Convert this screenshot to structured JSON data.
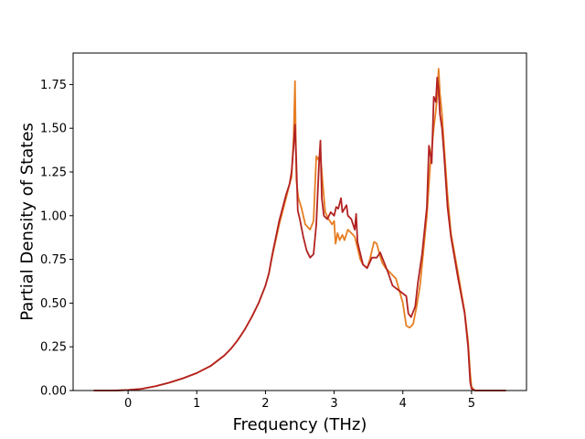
{
  "chart_data": {
    "type": "line",
    "title": "",
    "xlabel": "Frequency (THz)",
    "ylabel": "Partial Density of States",
    "xlim": [
      -0.8,
      5.8
    ],
    "ylim": [
      0,
      1.93
    ],
    "xticks": [
      0,
      1,
      2,
      3,
      4,
      5
    ],
    "yticks": [
      0.0,
      0.25,
      0.5,
      0.75,
      1.0,
      1.25,
      1.5,
      1.75
    ],
    "xtick_labels": [
      "0",
      "1",
      "2",
      "3",
      "4",
      "5"
    ],
    "ytick_labels": [
      "0.00",
      "0.25",
      "0.50",
      "0.75",
      "1.00",
      "1.25",
      "1.50",
      "1.75"
    ],
    "grid": false,
    "legend": false,
    "series": [
      {
        "color": "#e67e22",
        "x": [
          -0.5,
          -0.2,
          0.0,
          0.2,
          0.4,
          0.6,
          0.8,
          1.0,
          1.2,
          1.4,
          1.5,
          1.6,
          1.7,
          1.8,
          1.9,
          2.0,
          2.05,
          2.1,
          2.2,
          2.3,
          2.35,
          2.38,
          2.41,
          2.43,
          2.45,
          2.48,
          2.52,
          2.58,
          2.65,
          2.7,
          2.74,
          2.77,
          2.8,
          2.83,
          2.87,
          2.92,
          2.97,
          3.0,
          3.02,
          3.05,
          3.08,
          3.12,
          3.15,
          3.2,
          3.25,
          3.3,
          3.35,
          3.38,
          3.42,
          3.48,
          3.52,
          3.58,
          3.62,
          3.66,
          3.7,
          3.75,
          3.8,
          3.9,
          4.0,
          4.05,
          4.1,
          4.15,
          4.2,
          4.25,
          4.3,
          4.35,
          4.4,
          4.45,
          4.48,
          4.5,
          4.52,
          4.54,
          4.57,
          4.6,
          4.65,
          4.7,
          4.8,
          4.9,
          4.95,
          4.98,
          5.0,
          5.05,
          5.2,
          5.5
        ],
        "y": [
          0,
          0,
          0.003,
          0.01,
          0.025,
          0.045,
          0.07,
          0.1,
          0.14,
          0.2,
          0.24,
          0.29,
          0.35,
          0.42,
          0.5,
          0.6,
          0.67,
          0.77,
          0.95,
          1.1,
          1.18,
          1.22,
          1.45,
          1.77,
          1.2,
          1.1,
          1.05,
          0.95,
          0.92,
          0.97,
          1.34,
          1.32,
          1.36,
          1.2,
          1.02,
          0.98,
          0.95,
          0.97,
          0.84,
          0.9,
          0.86,
          0.89,
          0.86,
          0.92,
          0.9,
          0.88,
          0.8,
          0.75,
          0.72,
          0.7,
          0.75,
          0.85,
          0.84,
          0.78,
          0.73,
          0.7,
          0.68,
          0.64,
          0.5,
          0.37,
          0.36,
          0.38,
          0.48,
          0.6,
          0.8,
          1.0,
          1.3,
          1.5,
          1.6,
          1.68,
          1.84,
          1.7,
          1.58,
          1.4,
          1.12,
          0.9,
          0.68,
          0.45,
          0.28,
          0.1,
          0.02,
          0,
          0,
          0
        ]
      },
      {
        "color": "#b22222",
        "x": [
          -0.5,
          -0.2,
          0.0,
          0.2,
          0.4,
          0.6,
          0.8,
          1.0,
          1.2,
          1.4,
          1.5,
          1.6,
          1.7,
          1.8,
          1.9,
          2.0,
          2.05,
          2.1,
          2.2,
          2.3,
          2.35,
          2.38,
          2.41,
          2.43,
          2.45,
          2.47,
          2.5,
          2.55,
          2.6,
          2.65,
          2.7,
          2.74,
          2.78,
          2.8,
          2.82,
          2.85,
          2.9,
          2.95,
          3.0,
          3.03,
          3.06,
          3.1,
          3.12,
          3.15,
          3.18,
          3.2,
          3.25,
          3.3,
          3.32,
          3.34,
          3.37,
          3.42,
          3.48,
          3.55,
          3.62,
          3.67,
          3.72,
          3.78,
          3.85,
          3.95,
          4.05,
          4.08,
          4.12,
          4.18,
          4.22,
          4.28,
          4.35,
          4.38,
          4.42,
          4.45,
          4.48,
          4.5,
          4.52,
          4.54,
          4.57,
          4.6,
          4.65,
          4.7,
          4.8,
          4.9,
          4.95,
          4.98,
          5.0,
          5.05,
          5.2,
          5.5
        ],
        "y": [
          0,
          0,
          0.003,
          0.01,
          0.025,
          0.045,
          0.07,
          0.1,
          0.14,
          0.2,
          0.24,
          0.29,
          0.35,
          0.42,
          0.5,
          0.6,
          0.67,
          0.78,
          0.97,
          1.12,
          1.18,
          1.25,
          1.4,
          1.52,
          1.3,
          1.03,
          0.98,
          0.88,
          0.8,
          0.76,
          0.78,
          0.95,
          1.3,
          1.43,
          1.1,
          1.0,
          0.98,
          1.02,
          1.0,
          1.05,
          1.04,
          1.1,
          1.02,
          1.04,
          1.06,
          1.0,
          0.98,
          0.92,
          1.01,
          0.85,
          0.8,
          0.72,
          0.7,
          0.76,
          0.76,
          0.79,
          0.74,
          0.68,
          0.6,
          0.57,
          0.54,
          0.44,
          0.42,
          0.48,
          0.62,
          0.78,
          1.05,
          1.4,
          1.3,
          1.68,
          1.65,
          1.79,
          1.72,
          1.58,
          1.5,
          1.35,
          1.05,
          0.88,
          0.65,
          0.44,
          0.25,
          0.05,
          0.01,
          0,
          0,
          0
        ]
      }
    ]
  }
}
